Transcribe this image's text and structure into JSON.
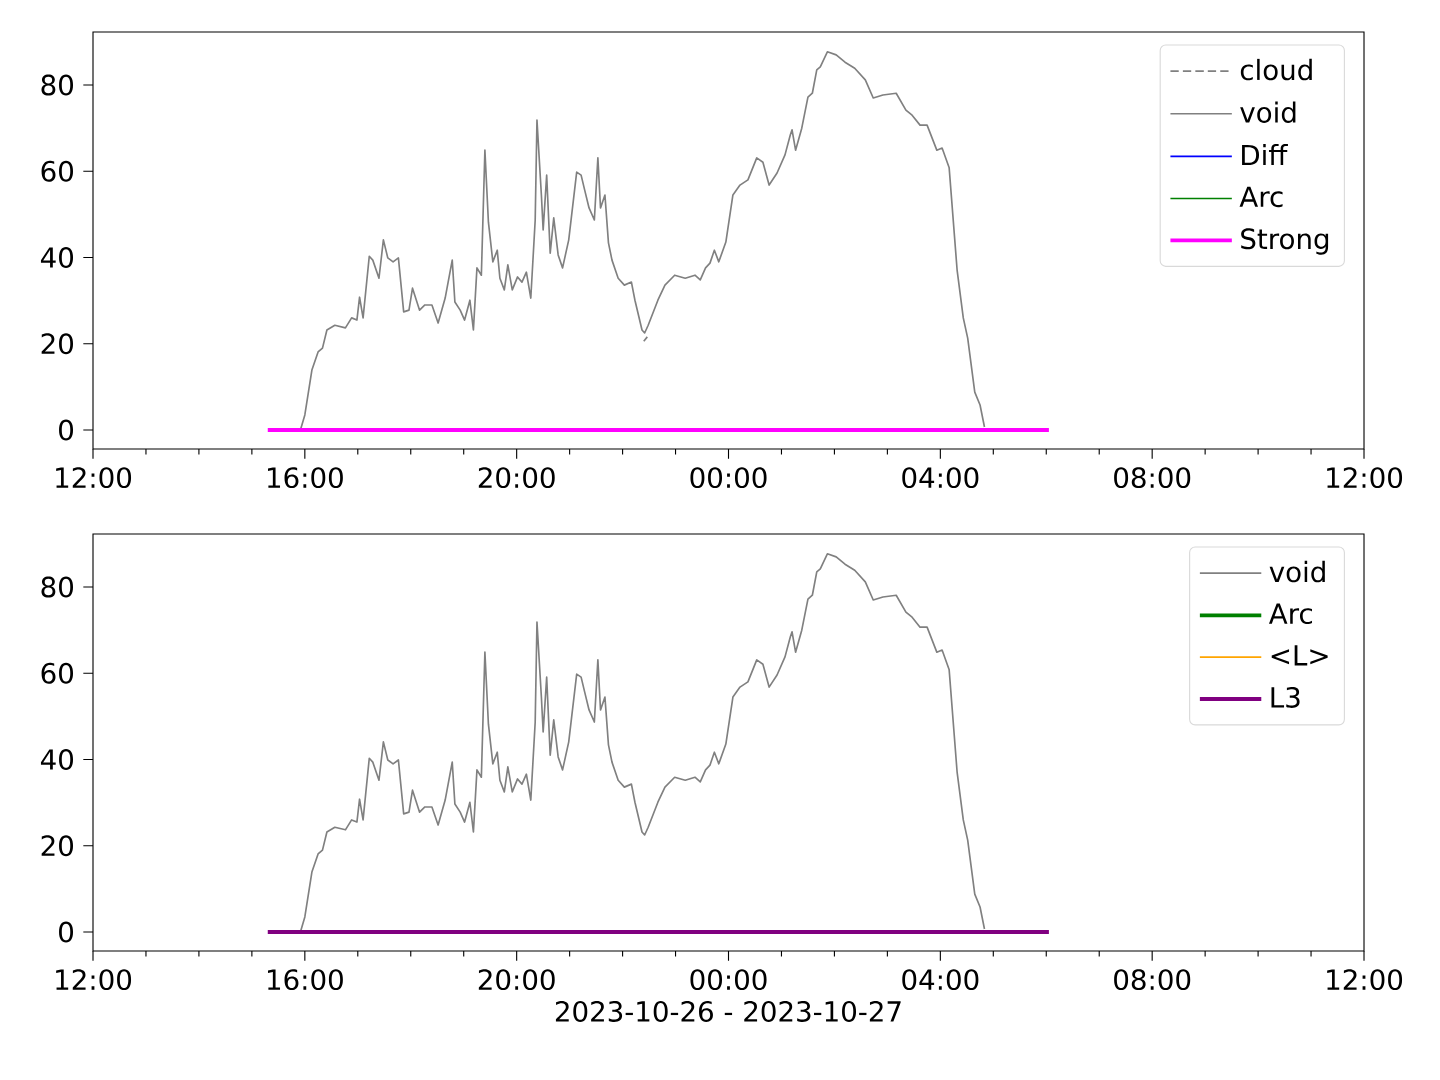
{
  "chart_data": [
    {
      "type": "line",
      "xlim": [
        "2023-10-26T12:00",
        "2023-10-27T12:00"
      ],
      "ylim": [
        -4.4,
        92.3
      ],
      "xticks": [
        {
          "value": "2023-10-26T12:00",
          "label": "12:00"
        },
        {
          "value": "2023-10-26T16:00",
          "label": "16:00"
        },
        {
          "value": "2023-10-26T20:00",
          "label": "20:00"
        },
        {
          "value": "2023-10-27T00:00",
          "label": "00:00"
        },
        {
          "value": "2023-10-27T04:00",
          "label": "04:00"
        },
        {
          "value": "2023-10-27T08:00",
          "label": "08:00"
        },
        {
          "value": "2023-10-27T12:00",
          "label": "12:00"
        }
      ],
      "yticks": [
        0,
        20,
        40,
        60,
        80
      ],
      "legend": "top right",
      "series": [
        {
          "name": "cloud",
          "color": "#808080",
          "line_style": "dashed",
          "x": [
            "2023-10-26T22:24",
            "2023-10-26T22:28"
          ],
          "values": [
            20.6,
            21.6
          ]
        },
        {
          "name": "void",
          "color": "#808080",
          "x": [
            "2023-10-26T15:55",
            "2023-10-26T16:00",
            "2023-10-26T16:08",
            "2023-10-26T16:15",
            "2023-10-26T16:20",
            "2023-10-26T16:25",
            "2023-10-26T16:34",
            "2023-10-26T16:46",
            "2023-10-26T16:53",
            "2023-10-26T16:59",
            "2023-10-26T17:02",
            "2023-10-26T17:06",
            "2023-10-26T17:13",
            "2023-10-26T17:17",
            "2023-10-26T17:24",
            "2023-10-26T17:29",
            "2023-10-26T17:34",
            "2023-10-26T17:40",
            "2023-10-26T17:46",
            "2023-10-26T17:52",
            "2023-10-26T17:58",
            "2023-10-26T18:02",
            "2023-10-26T18:10",
            "2023-10-26T18:16",
            "2023-10-26T18:24",
            "2023-10-26T18:31",
            "2023-10-26T18:39",
            "2023-10-26T18:47",
            "2023-10-26T18:50",
            "2023-10-26T18:56",
            "2023-10-26T19:01",
            "2023-10-26T19:07",
            "2023-10-26T19:11",
            "2023-10-26T19:15",
            "2023-10-26T19:20",
            "2023-10-26T19:24",
            "2023-10-26T19:28",
            "2023-10-26T19:33",
            "2023-10-26T19:38",
            "2023-10-26T19:41",
            "2023-10-26T19:46",
            "2023-10-26T19:50",
            "2023-10-26T19:55",
            "2023-10-26T20:01",
            "2023-10-26T20:06",
            "2023-10-26T20:11",
            "2023-10-26T20:16",
            "2023-10-26T20:21",
            "2023-10-26T20:23",
            "2023-10-26T20:28",
            "2023-10-26T20:30",
            "2023-10-26T20:34",
            "2023-10-26T20:38",
            "2023-10-26T20:42",
            "2023-10-26T20:47",
            "2023-10-26T20:52",
            "2023-10-26T20:59",
            "2023-10-26T21:08",
            "2023-10-26T21:13",
            "2023-10-26T21:17",
            "2023-10-26T21:22",
            "2023-10-26T21:28",
            "2023-10-26T21:32",
            "2023-10-26T21:35",
            "2023-10-26T21:40",
            "2023-10-26T21:44",
            "2023-10-26T21:48",
            "2023-10-26T21:55",
            "2023-10-26T22:02",
            "2023-10-26T22:10",
            "2023-10-26T22:14",
            "2023-10-26T22:22",
            "2023-10-26T22:25",
            "2023-10-26T22:29",
            "2023-10-26T22:40",
            "2023-10-26T22:48",
            "2023-10-26T22:59",
            "2023-10-26T23:11",
            "2023-10-26T23:22",
            "2023-10-26T23:28",
            "2023-10-26T23:34",
            "2023-10-26T23:39",
            "2023-10-26T23:44",
            "2023-10-26T23:49",
            "2023-10-26T23:57",
            "2023-10-27T00:05",
            "2023-10-27T00:13",
            "2023-10-27T00:22",
            "2023-10-27T00:32",
            "2023-10-27T00:39",
            "2023-10-27T00:46",
            "2023-10-27T00:55",
            "2023-10-27T01:04",
            "2023-10-27T01:10",
            "2023-10-27T01:12",
            "2023-10-27T01:16",
            "2023-10-27T01:23",
            "2023-10-27T01:30",
            "2023-10-27T01:35",
            "2023-10-27T01:40",
            "2023-10-27T01:44",
            "2023-10-27T01:52",
            "2023-10-27T02:02",
            "2023-10-27T02:12",
            "2023-10-27T02:23",
            "2023-10-27T02:35",
            "2023-10-27T02:44",
            "2023-10-27T02:55",
            "2023-10-27T03:10",
            "2023-10-27T03:21",
            "2023-10-27T03:28",
            "2023-10-27T03:37",
            "2023-10-27T03:45",
            "2023-10-27T03:56",
            "2023-10-27T04:02",
            "2023-10-27T04:10",
            "2023-10-27T04:19",
            "2023-10-27T04:26",
            "2023-10-27T04:31",
            "2023-10-27T04:39",
            "2023-10-27T04:45",
            "2023-10-27T04:50"
          ],
          "values": [
            0,
            3.5,
            13.9,
            18.1,
            19.0,
            23.2,
            24.3,
            23.7,
            26.0,
            25.5,
            30.8,
            26.0,
            40.3,
            39.4,
            35.2,
            44.1,
            39.9,
            39.0,
            39.9,
            27.4,
            27.8,
            32.9,
            27.8,
            29.0,
            29.0,
            24.8,
            30.6,
            39.4,
            29.7,
            27.8,
            25.5,
            30.1,
            23.2,
            37.6,
            35.9,
            64.9,
            48.2,
            39.0,
            41.7,
            35.2,
            32.5,
            38.3,
            32.5,
            35.5,
            34.3,
            36.6,
            30.6,
            48.7,
            71.9,
            54.5,
            46.4,
            59.1,
            41.0,
            49.2,
            40.6,
            37.6,
            44.1,
            59.8,
            59.1,
            55.7,
            51.5,
            48.7,
            63.1,
            51.5,
            54.5,
            43.4,
            39.4,
            35.2,
            33.6,
            34.3,
            30.1,
            23.2,
            22.5,
            24.3,
            30.1,
            33.6,
            35.9,
            35.2,
            35.9,
            34.8,
            37.6,
            38.7,
            41.7,
            39.0,
            43.6,
            54.5,
            56.8,
            58.0,
            63.1,
            62.1,
            56.8,
            59.6,
            63.8,
            68.4,
            69.6,
            64.9,
            70.0,
            77.2,
            78.1,
            83.5,
            84.2,
            87.7,
            87.0,
            85.3,
            83.9,
            81.2,
            77.0,
            77.7,
            78.1,
            74.2,
            73.0,
            70.7,
            70.7,
            64.9,
            65.4,
            60.8,
            37.1,
            26.0,
            21.3,
            8.8,
            5.8,
            0.7
          ]
        },
        {
          "name": "Diff",
          "color": "#0000ff"
        },
        {
          "name": "Arc",
          "color": "#008000"
        },
        {
          "name": "Strong",
          "color": "#ff00ff",
          "x": [
            "2023-10-26T15:18",
            "2023-10-27T06:03"
          ],
          "values": [
            0,
            0
          ]
        }
      ]
    },
    {
      "type": "line",
      "xlim": [
        "2023-10-26T12:00",
        "2023-10-27T12:00"
      ],
      "ylim": [
        -4.4,
        92.3
      ],
      "xticks": [
        {
          "value": "2023-10-26T12:00",
          "label": "12:00"
        },
        {
          "value": "2023-10-26T16:00",
          "label": "16:00"
        },
        {
          "value": "2023-10-26T20:00",
          "label": "20:00"
        },
        {
          "value": "2023-10-27T00:00",
          "label": "00:00"
        },
        {
          "value": "2023-10-27T04:00",
          "label": "04:00"
        },
        {
          "value": "2023-10-27T08:00",
          "label": "08:00"
        },
        {
          "value": "2023-10-27T12:00",
          "label": "12:00"
        }
      ],
      "yticks": [
        0,
        20,
        40,
        60,
        80
      ],
      "legend": "top right",
      "xlabel": "2023-10-26 - 2023-10-27",
      "series": [
        {
          "name": "void",
          "color": "#808080",
          "x": [
            "2023-10-26T15:55",
            "2023-10-26T16:00",
            "2023-10-26T16:08",
            "2023-10-26T16:15",
            "2023-10-26T16:20",
            "2023-10-26T16:25",
            "2023-10-26T16:34",
            "2023-10-26T16:46",
            "2023-10-26T16:53",
            "2023-10-26T16:59",
            "2023-10-26T17:02",
            "2023-10-26T17:06",
            "2023-10-26T17:13",
            "2023-10-26T17:17",
            "2023-10-26T17:24",
            "2023-10-26T17:29",
            "2023-10-26T17:34",
            "2023-10-26T17:40",
            "2023-10-26T17:46",
            "2023-10-26T17:52",
            "2023-10-26T17:58",
            "2023-10-26T18:02",
            "2023-10-26T18:10",
            "2023-10-26T18:16",
            "2023-10-26T18:24",
            "2023-10-26T18:31",
            "2023-10-26T18:39",
            "2023-10-26T18:47",
            "2023-10-26T18:50",
            "2023-10-26T18:56",
            "2023-10-26T19:01",
            "2023-10-26T19:07",
            "2023-10-26T19:11",
            "2023-10-26T19:15",
            "2023-10-26T19:20",
            "2023-10-26T19:24",
            "2023-10-26T19:28",
            "2023-10-26T19:33",
            "2023-10-26T19:38",
            "2023-10-26T19:41",
            "2023-10-26T19:46",
            "2023-10-26T19:50",
            "2023-10-26T19:55",
            "2023-10-26T20:01",
            "2023-10-26T20:06",
            "2023-10-26T20:11",
            "2023-10-26T20:16",
            "2023-10-26T20:21",
            "2023-10-26T20:23",
            "2023-10-26T20:28",
            "2023-10-26T20:30",
            "2023-10-26T20:34",
            "2023-10-26T20:38",
            "2023-10-26T20:42",
            "2023-10-26T20:47",
            "2023-10-26T20:52",
            "2023-10-26T20:59",
            "2023-10-26T21:08",
            "2023-10-26T21:13",
            "2023-10-26T21:17",
            "2023-10-26T21:22",
            "2023-10-26T21:28",
            "2023-10-26T21:32",
            "2023-10-26T21:35",
            "2023-10-26T21:40",
            "2023-10-26T21:44",
            "2023-10-26T21:48",
            "2023-10-26T21:55",
            "2023-10-26T22:02",
            "2023-10-26T22:10",
            "2023-10-26T22:14",
            "2023-10-26T22:22",
            "2023-10-26T22:25",
            "2023-10-26T22:29",
            "2023-10-26T22:40",
            "2023-10-26T22:48",
            "2023-10-26T22:59",
            "2023-10-26T23:11",
            "2023-10-26T23:22",
            "2023-10-26T23:28",
            "2023-10-26T23:34",
            "2023-10-26T23:39",
            "2023-10-26T23:44",
            "2023-10-26T23:49",
            "2023-10-26T23:57",
            "2023-10-27T00:05",
            "2023-10-27T00:13",
            "2023-10-27T00:22",
            "2023-10-27T00:32",
            "2023-10-27T00:39",
            "2023-10-27T00:46",
            "2023-10-27T00:55",
            "2023-10-27T01:04",
            "2023-10-27T01:10",
            "2023-10-27T01:12",
            "2023-10-27T01:16",
            "2023-10-27T01:23",
            "2023-10-27T01:30",
            "2023-10-27T01:35",
            "2023-10-27T01:40",
            "2023-10-27T01:44",
            "2023-10-27T01:52",
            "2023-10-27T02:02",
            "2023-10-27T02:12",
            "2023-10-27T02:23",
            "2023-10-27T02:35",
            "2023-10-27T02:44",
            "2023-10-27T02:55",
            "2023-10-27T03:10",
            "2023-10-27T03:21",
            "2023-10-27T03:28",
            "2023-10-27T03:37",
            "2023-10-27T03:45",
            "2023-10-27T03:56",
            "2023-10-27T04:02",
            "2023-10-27T04:10",
            "2023-10-27T04:19",
            "2023-10-27T04:26",
            "2023-10-27T04:31",
            "2023-10-27T04:39",
            "2023-10-27T04:45",
            "2023-10-27T04:50"
          ],
          "values": [
            0,
            3.5,
            13.9,
            18.1,
            19.0,
            23.2,
            24.3,
            23.7,
            26.0,
            25.5,
            30.8,
            26.0,
            40.3,
            39.4,
            35.2,
            44.1,
            39.9,
            39.0,
            39.9,
            27.4,
            27.8,
            32.9,
            27.8,
            29.0,
            29.0,
            24.8,
            30.6,
            39.4,
            29.7,
            27.8,
            25.5,
            30.1,
            23.2,
            37.6,
            35.9,
            64.9,
            48.2,
            39.0,
            41.7,
            35.2,
            32.5,
            38.3,
            32.5,
            35.5,
            34.3,
            36.6,
            30.6,
            48.7,
            71.9,
            54.5,
            46.4,
            59.1,
            41.0,
            49.2,
            40.6,
            37.6,
            44.1,
            59.8,
            59.1,
            55.7,
            51.5,
            48.7,
            63.1,
            51.5,
            54.5,
            43.4,
            39.4,
            35.2,
            33.6,
            34.3,
            30.1,
            23.2,
            22.5,
            24.3,
            30.1,
            33.6,
            35.9,
            35.2,
            35.9,
            34.8,
            37.6,
            38.7,
            41.7,
            39.0,
            43.6,
            54.5,
            56.8,
            58.0,
            63.1,
            62.1,
            56.8,
            59.6,
            63.8,
            68.4,
            69.6,
            64.9,
            70.0,
            77.2,
            78.1,
            83.5,
            84.2,
            87.7,
            87.0,
            85.3,
            83.9,
            81.2,
            77.0,
            77.7,
            78.1,
            74.2,
            73.0,
            70.7,
            70.7,
            64.9,
            65.4,
            60.8,
            37.1,
            26.0,
            21.3,
            8.8,
            5.8,
            0.7
          ]
        },
        {
          "name": "Arc",
          "color": "#008000"
        },
        {
          "name": "<L>",
          "color": "#ffa500"
        },
        {
          "name": "L3",
          "color": "#800080",
          "x": [
            "2023-10-26T15:18",
            "2023-10-27T06:03"
          ],
          "values": [
            0,
            0
          ]
        }
      ]
    }
  ]
}
